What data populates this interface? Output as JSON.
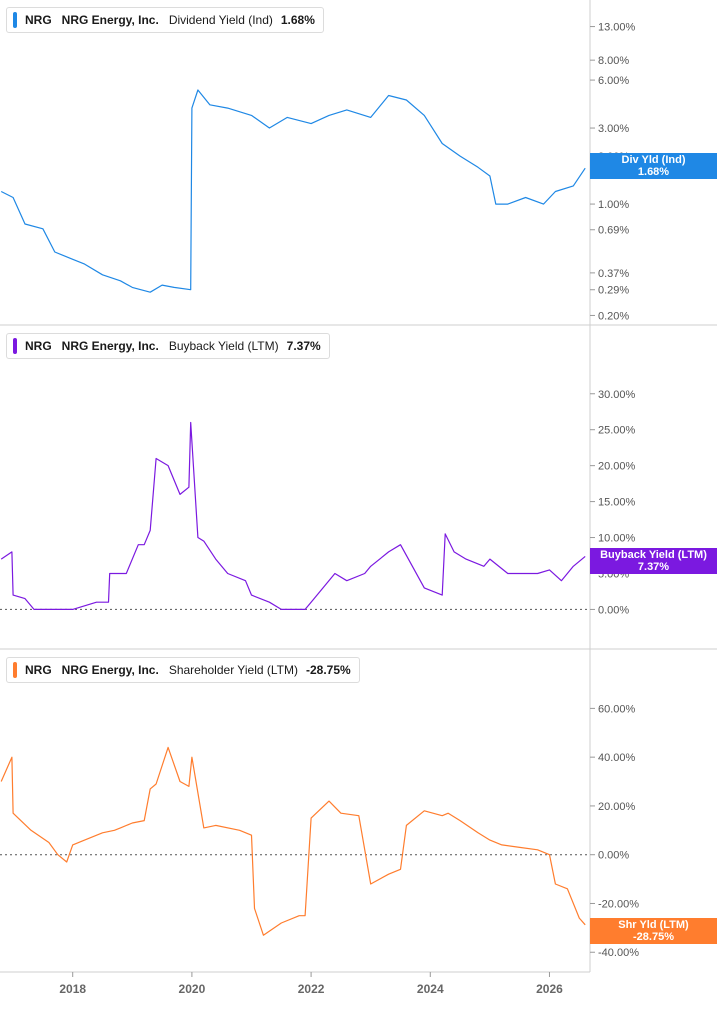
{
  "chart_data": [
    {
      "type": "line",
      "ticker": "NRG",
      "company": "NRG Energy, Inc.",
      "metric": "Dividend Yield (Ind)",
      "current_value": "1.68%",
      "tag_label": "Div Yld (Ind)",
      "color": "#1f88e5",
      "y_scale": "log",
      "y_ticks": [
        "13.00%",
        "8.00%",
        "6.00%",
        "3.00%",
        "2.00%",
        "1.00%",
        "0.69%",
        "0.37%",
        "0.29%",
        "0.20%"
      ],
      "y_tick_values": [
        13,
        8,
        6,
        3,
        2,
        1,
        0.69,
        0.37,
        0.29,
        0.2
      ],
      "ylim": [
        0.19,
        17
      ],
      "x": [
        2016.8,
        2017.0,
        2017.2,
        2017.5,
        2017.7,
        2018.0,
        2018.2,
        2018.5,
        2018.8,
        2019.0,
        2019.3,
        2019.5,
        2019.7,
        2019.98,
        2020.0,
        2020.1,
        2020.3,
        2020.6,
        2021.0,
        2021.3,
        2021.6,
        2022.0,
        2022.3,
        2022.6,
        2023.0,
        2023.3,
        2023.6,
        2023.9,
        2024.2,
        2024.5,
        2024.8,
        2025.0,
        2025.1,
        2025.3,
        2025.6,
        2025.9,
        2026.1,
        2026.4,
        2026.6
      ],
      "values": [
        1.2,
        1.1,
        0.75,
        0.7,
        0.5,
        0.45,
        0.42,
        0.36,
        0.33,
        0.3,
        0.28,
        0.31,
        0.3,
        0.29,
        4.0,
        5.2,
        4.2,
        4.0,
        3.6,
        3.0,
        3.5,
        3.2,
        3.6,
        3.9,
        3.5,
        4.8,
        4.5,
        3.6,
        2.4,
        2.0,
        1.7,
        1.5,
        1.0,
        1.0,
        1.1,
        1.0,
        1.2,
        1.3,
        1.68
      ]
    },
    {
      "type": "line",
      "ticker": "NRG",
      "company": "NRG Energy, Inc.",
      "metric": "Buyback Yield (LTM)",
      "current_value": "7.37%",
      "tag_label": "Buyback Yield (LTM)",
      "color": "#7b19e0",
      "y_ticks": [
        "30.00%",
        "25.00%",
        "20.00%",
        "15.00%",
        "10.00%",
        "5.00%",
        "0.00%"
      ],
      "y_tick_values": [
        30,
        25,
        20,
        15,
        10,
        5,
        0
      ],
      "ylim": [
        -3,
        34
      ],
      "x": [
        2016.8,
        2016.98,
        2017.0,
        2017.2,
        2017.35,
        2017.5,
        2018.0,
        2018.2,
        2018.4,
        2018.6,
        2018.62,
        2018.9,
        2019.1,
        2019.2,
        2019.3,
        2019.4,
        2019.6,
        2019.8,
        2019.95,
        2019.98,
        2020.1,
        2020.2,
        2020.4,
        2020.6,
        2020.9,
        2021.0,
        2021.3,
        2021.5,
        2021.9,
        2022.0,
        2022.2,
        2022.4,
        2022.6,
        2022.9,
        2023.0,
        2023.3,
        2023.5,
        2023.7,
        2023.9,
        2024.2,
        2024.25,
        2024.4,
        2024.6,
        2024.9,
        2025.0,
        2025.3,
        2025.5,
        2025.8,
        2026.0,
        2026.2,
        2026.4,
        2026.6
      ],
      "values": [
        7.0,
        8.0,
        2.0,
        1.5,
        0.0,
        0.0,
        0.0,
        0.5,
        1.0,
        1.0,
        5.0,
        5.0,
        9.0,
        9.0,
        11.0,
        21.0,
        20.0,
        16.0,
        17.0,
        26.0,
        10.0,
        9.5,
        7.0,
        5.0,
        4.0,
        2.0,
        1.0,
        0.0,
        0.0,
        1.0,
        3.0,
        5.0,
        4.0,
        5.0,
        6.0,
        8.0,
        9.0,
        6.0,
        3.0,
        2.0,
        10.5,
        8.0,
        7.0,
        6.0,
        7.0,
        5.0,
        5.0,
        5.0,
        5.5,
        4.0,
        6.0,
        7.37
      ]
    },
    {
      "type": "line",
      "ticker": "NRG",
      "company": "NRG Energy, Inc.",
      "metric": "Shareholder Yield (LTM)",
      "current_value": "-28.75%",
      "tag_label": "Shr Yld (LTM)",
      "color": "#ff7d2e",
      "y_ticks": [
        "60.00%",
        "40.00%",
        "20.00%",
        "0.00%",
        "-20.00%",
        "-40.00%"
      ],
      "y_tick_values": [
        60,
        40,
        20,
        0,
        -20,
        -40
      ],
      "ylim": [
        -44,
        70
      ],
      "x": [
        2016.8,
        2016.98,
        2017.0,
        2017.3,
        2017.6,
        2017.75,
        2017.9,
        2018.0,
        2018.2,
        2018.5,
        2018.7,
        2018.8,
        2019.0,
        2019.2,
        2019.3,
        2019.4,
        2019.6,
        2019.8,
        2019.95,
        2020.0,
        2020.2,
        2020.4,
        2020.8,
        2021.0,
        2021.05,
        2021.2,
        2021.5,
        2021.8,
        2021.9,
        2022.0,
        2022.3,
        2022.5,
        2022.8,
        2023.0,
        2023.3,
        2023.5,
        2023.6,
        2023.9,
        2024.2,
        2024.3,
        2024.5,
        2024.8,
        2025.0,
        2025.2,
        2025.5,
        2025.8,
        2026.0,
        2026.1,
        2026.3,
        2026.5,
        2026.6
      ],
      "values": [
        30.0,
        40.0,
        17.0,
        10.0,
        5.0,
        0.0,
        -3.0,
        4.0,
        6.0,
        9.0,
        10.0,
        11.0,
        13.0,
        14.0,
        27.0,
        29.0,
        44.0,
        30.0,
        28.0,
        40.0,
        11.0,
        12.0,
        10.0,
        8.0,
        -22.0,
        -33.0,
        -28.0,
        -25.0,
        -25.0,
        15.0,
        22.0,
        17.0,
        16.0,
        -12.0,
        -8.0,
        -6.0,
        12.0,
        18.0,
        16.0,
        17.0,
        14.0,
        9.0,
        6.0,
        4.0,
        3.0,
        2.0,
        0.0,
        -12.0,
        -14.0,
        -26.0,
        -28.75
      ]
    }
  ],
  "x_axis": {
    "ticks": [
      "2018",
      "2020",
      "2022",
      "2024",
      "2026"
    ],
    "tick_values": [
      2018,
      2020,
      2022,
      2024,
      2026
    ],
    "xlim": [
      2016.78,
      2026.68
    ]
  }
}
